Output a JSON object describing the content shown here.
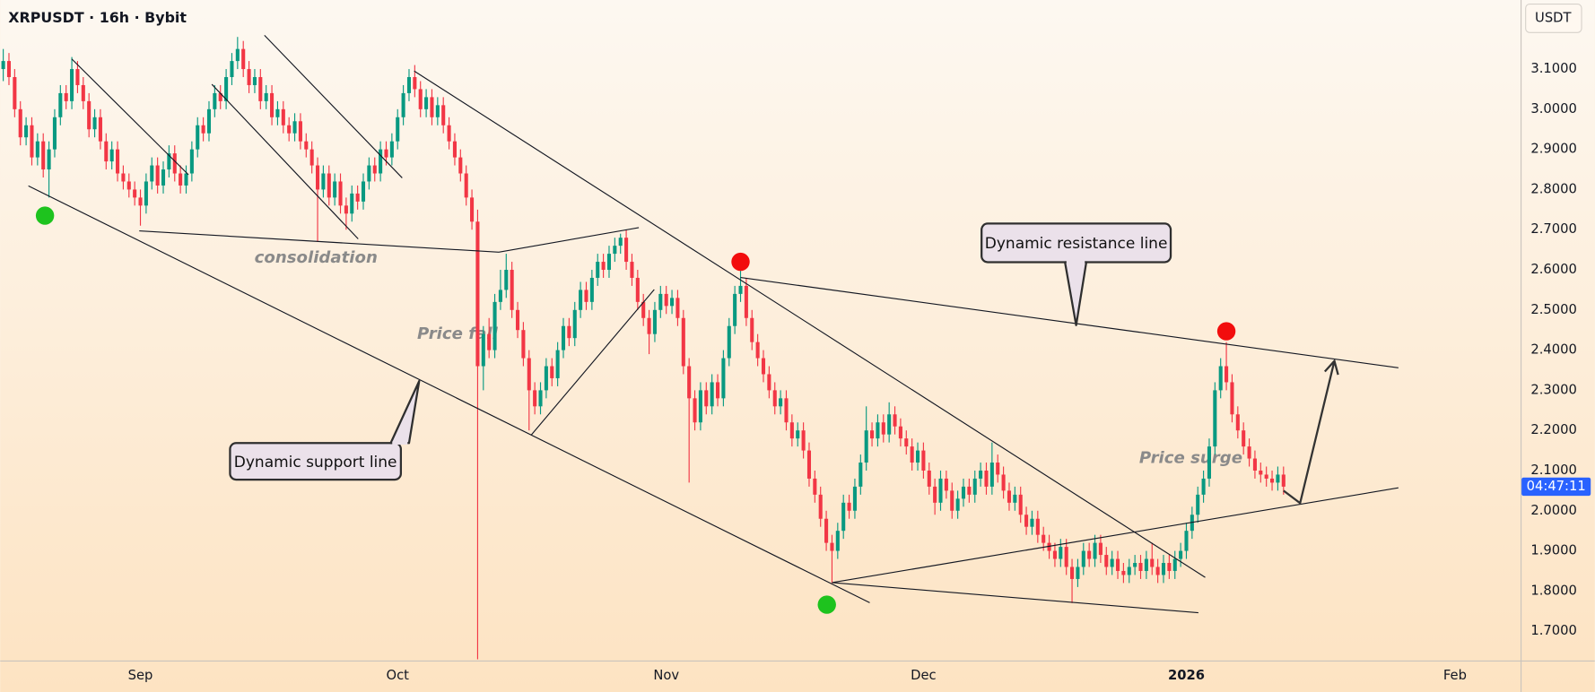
{
  "chart_data": {
    "type": "candlestick",
    "title": "XRPUSDT · 16h · Bybit",
    "currency": "USDT",
    "countdown": "04:47:11",
    "up_color": "#089981",
    "down_color": "#f23645",
    "xlim": [
      -0.53,
      265.47
    ],
    "xticks": [
      {
        "value": 24,
        "label": "Sep"
      },
      {
        "value": 69,
        "label": "Oct"
      },
      {
        "value": 116,
        "label": "Nov"
      },
      {
        "value": 161,
        "label": "Dec"
      },
      {
        "value": 207,
        "label": "2026"
      },
      {
        "value": 254,
        "label": "Feb"
      }
    ],
    "ylim": [
      1.627,
      3.272
    ],
    "yticks": [
      {
        "value": 1.7,
        "label": "1.7000"
      },
      {
        "value": 1.8,
        "label": "1.8000"
      },
      {
        "value": 1.9,
        "label": "1.9000"
      },
      {
        "value": 2.0,
        "label": "2.0000"
      },
      {
        "value": 2.1,
        "label": "2.1000"
      },
      {
        "value": 2.2,
        "label": "2.2000"
      },
      {
        "value": 2.3,
        "label": "2.3000"
      },
      {
        "value": 2.4,
        "label": "2.4000"
      },
      {
        "value": 2.5,
        "label": "2.5000"
      },
      {
        "value": 2.6,
        "label": "2.6000"
      },
      {
        "value": 2.7,
        "label": "2.7000"
      },
      {
        "value": 2.8,
        "label": "2.8000"
      },
      {
        "value": 2.9,
        "label": "2.9000"
      },
      {
        "value": 3.0,
        "label": "3.0000"
      },
      {
        "value": 3.1,
        "label": "3.1000"
      }
    ],
    "candles": [
      [
        3.1,
        3.15,
        3.07,
        3.12
      ],
      [
        3.12,
        3.14,
        3.06,
        3.08
      ],
      [
        3.08,
        3.1,
        2.98,
        3.0
      ],
      [
        3.0,
        3.02,
        2.91,
        2.93
      ],
      [
        2.93,
        2.98,
        2.91,
        2.96
      ],
      [
        2.96,
        2.98,
        2.86,
        2.88
      ],
      [
        2.88,
        2.94,
        2.86,
        2.92
      ],
      [
        2.92,
        2.94,
        2.83,
        2.85
      ],
      [
        2.85,
        2.92,
        2.78,
        2.9
      ],
      [
        2.9,
        3.0,
        2.88,
        2.98
      ],
      [
        2.98,
        3.06,
        2.96,
        3.04
      ],
      [
        3.04,
        3.06,
        3.0,
        3.02
      ],
      [
        3.02,
        3.13,
        3.0,
        3.1
      ],
      [
        3.1,
        3.12,
        3.04,
        3.06
      ],
      [
        3.06,
        3.08,
        3.0,
        3.02
      ],
      [
        3.02,
        3.04,
        2.93,
        2.95
      ],
      [
        2.95,
        3.0,
        2.93,
        2.98
      ],
      [
        2.98,
        3.0,
        2.9,
        2.92
      ],
      [
        2.92,
        2.94,
        2.85,
        2.87
      ],
      [
        2.87,
        2.92,
        2.85,
        2.9
      ],
      [
        2.9,
        2.92,
        2.82,
        2.84
      ],
      [
        2.84,
        2.86,
        2.8,
        2.82
      ],
      [
        2.82,
        2.84,
        2.78,
        2.8
      ],
      [
        2.8,
        2.82,
        2.76,
        2.78
      ],
      [
        2.78,
        2.8,
        2.71,
        2.76
      ],
      [
        2.76,
        2.84,
        2.74,
        2.82
      ],
      [
        2.82,
        2.88,
        2.8,
        2.86
      ],
      [
        2.86,
        2.88,
        2.79,
        2.81
      ],
      [
        2.81,
        2.87,
        2.79,
        2.85
      ],
      [
        2.85,
        2.91,
        2.83,
        2.89
      ],
      [
        2.89,
        2.91,
        2.82,
        2.84
      ],
      [
        2.84,
        2.86,
        2.79,
        2.81
      ],
      [
        2.81,
        2.86,
        2.79,
        2.84
      ],
      [
        2.84,
        2.92,
        2.82,
        2.9
      ],
      [
        2.9,
        2.98,
        2.88,
        2.96
      ],
      [
        2.96,
        2.98,
        2.92,
        2.94
      ],
      [
        2.94,
        3.02,
        2.92,
        3.0
      ],
      [
        3.0,
        3.06,
        2.98,
        3.04
      ],
      [
        3.04,
        3.06,
        3.0,
        3.02
      ],
      [
        3.02,
        3.1,
        3.0,
        3.08
      ],
      [
        3.08,
        3.14,
        3.06,
        3.12
      ],
      [
        3.12,
        3.18,
        3.1,
        3.15
      ],
      [
        3.15,
        3.17,
        3.08,
        3.1
      ],
      [
        3.1,
        3.12,
        3.04,
        3.06
      ],
      [
        3.06,
        3.1,
        3.04,
        3.08
      ],
      [
        3.08,
        3.1,
        3.0,
        3.02
      ],
      [
        3.02,
        3.06,
        3.0,
        3.04
      ],
      [
        3.04,
        3.06,
        2.96,
        2.98
      ],
      [
        2.98,
        3.02,
        2.96,
        3.0
      ],
      [
        3.0,
        3.02,
        2.94,
        2.96
      ],
      [
        2.96,
        2.98,
        2.92,
        2.94
      ],
      [
        2.94,
        2.99,
        2.92,
        2.97
      ],
      [
        2.97,
        2.99,
        2.9,
        2.92
      ],
      [
        2.92,
        2.94,
        2.88,
        2.9
      ],
      [
        2.9,
        2.92,
        2.84,
        2.86
      ],
      [
        2.86,
        2.88,
        2.67,
        2.8
      ],
      [
        2.8,
        2.86,
        2.78,
        2.84
      ],
      [
        2.84,
        2.86,
        2.76,
        2.78
      ],
      [
        2.78,
        2.84,
        2.76,
        2.82
      ],
      [
        2.82,
        2.84,
        2.74,
        2.76
      ],
      [
        2.76,
        2.78,
        2.7,
        2.74
      ],
      [
        2.74,
        2.81,
        2.72,
        2.79
      ],
      [
        2.79,
        2.81,
        2.75,
        2.77
      ],
      [
        2.77,
        2.84,
        2.75,
        2.82
      ],
      [
        2.82,
        2.88,
        2.8,
        2.86
      ],
      [
        2.86,
        2.88,
        2.82,
        2.84
      ],
      [
        2.84,
        2.92,
        2.82,
        2.9
      ],
      [
        2.9,
        2.92,
        2.86,
        2.88
      ],
      [
        2.88,
        2.94,
        2.86,
        2.92
      ],
      [
        2.92,
        3.0,
        2.9,
        2.98
      ],
      [
        2.98,
        3.06,
        2.96,
        3.04
      ],
      [
        3.04,
        3.1,
        3.02,
        3.08
      ],
      [
        3.08,
        3.11,
        3.03,
        3.05
      ],
      [
        3.05,
        3.07,
        2.98,
        3.0
      ],
      [
        3.0,
        3.05,
        2.98,
        3.03
      ],
      [
        3.03,
        3.05,
        2.96,
        2.98
      ],
      [
        2.98,
        3.03,
        2.96,
        3.01
      ],
      [
        3.01,
        3.03,
        2.94,
        2.96
      ],
      [
        2.96,
        2.98,
        2.9,
        2.92
      ],
      [
        2.92,
        2.94,
        2.86,
        2.88
      ],
      [
        2.88,
        2.9,
        2.82,
        2.84
      ],
      [
        2.84,
        2.86,
        2.76,
        2.78
      ],
      [
        2.78,
        2.8,
        2.7,
        2.72
      ],
      [
        2.72,
        2.75,
        1.63,
        2.36
      ],
      [
        2.36,
        2.46,
        2.3,
        2.44
      ],
      [
        2.44,
        2.48,
        2.38,
        2.4
      ],
      [
        2.4,
        2.54,
        2.38,
        2.52
      ],
      [
        2.52,
        2.6,
        2.5,
        2.55
      ],
      [
        2.55,
        2.64,
        2.53,
        2.6
      ],
      [
        2.6,
        2.62,
        2.48,
        2.5
      ],
      [
        2.5,
        2.52,
        2.43,
        2.45
      ],
      [
        2.45,
        2.47,
        2.36,
        2.38
      ],
      [
        2.38,
        2.4,
        2.2,
        2.3
      ],
      [
        2.3,
        2.32,
        2.24,
        2.26
      ],
      [
        2.26,
        2.32,
        2.24,
        2.3
      ],
      [
        2.3,
        2.38,
        2.28,
        2.36
      ],
      [
        2.36,
        2.38,
        2.31,
        2.33
      ],
      [
        2.33,
        2.42,
        2.31,
        2.4
      ],
      [
        2.4,
        2.48,
        2.38,
        2.46
      ],
      [
        2.46,
        2.48,
        2.41,
        2.43
      ],
      [
        2.43,
        2.52,
        2.41,
        2.5
      ],
      [
        2.5,
        2.57,
        2.48,
        2.55
      ],
      [
        2.55,
        2.57,
        2.5,
        2.52
      ],
      [
        2.52,
        2.6,
        2.5,
        2.58
      ],
      [
        2.58,
        2.64,
        2.56,
        2.62
      ],
      [
        2.62,
        2.64,
        2.58,
        2.6
      ],
      [
        2.6,
        2.66,
        2.58,
        2.64
      ],
      [
        2.64,
        2.68,
        2.62,
        2.66
      ],
      [
        2.66,
        2.69,
        2.64,
        2.68
      ],
      [
        2.68,
        2.7,
        2.6,
        2.62
      ],
      [
        2.62,
        2.64,
        2.56,
        2.58
      ],
      [
        2.58,
        2.6,
        2.5,
        2.52
      ],
      [
        2.52,
        2.54,
        2.46,
        2.48
      ],
      [
        2.48,
        2.5,
        2.39,
        2.44
      ],
      [
        2.44,
        2.52,
        2.42,
        2.5
      ],
      [
        2.5,
        2.56,
        2.48,
        2.54
      ],
      [
        2.54,
        2.56,
        2.49,
        2.51
      ],
      [
        2.51,
        2.55,
        2.49,
        2.53
      ],
      [
        2.53,
        2.55,
        2.46,
        2.48
      ],
      [
        2.48,
        2.5,
        2.34,
        2.36
      ],
      [
        2.36,
        2.38,
        2.07,
        2.28
      ],
      [
        2.28,
        2.3,
        2.2,
        2.22
      ],
      [
        2.22,
        2.32,
        2.2,
        2.3
      ],
      [
        2.3,
        2.32,
        2.24,
        2.26
      ],
      [
        2.26,
        2.34,
        2.24,
        2.32
      ],
      [
        2.32,
        2.34,
        2.26,
        2.28
      ],
      [
        2.28,
        2.4,
        2.26,
        2.38
      ],
      [
        2.38,
        2.48,
        2.36,
        2.46
      ],
      [
        2.46,
        2.56,
        2.44,
        2.54
      ],
      [
        2.54,
        2.6,
        2.52,
        2.56
      ],
      [
        2.56,
        2.58,
        2.46,
        2.48
      ],
      [
        2.48,
        2.5,
        2.4,
        2.42
      ],
      [
        2.42,
        2.44,
        2.36,
        2.38
      ],
      [
        2.38,
        2.4,
        2.32,
        2.34
      ],
      [
        2.34,
        2.36,
        2.28,
        2.3
      ],
      [
        2.3,
        2.32,
        2.24,
        2.26
      ],
      [
        2.26,
        2.3,
        2.24,
        2.28
      ],
      [
        2.28,
        2.3,
        2.2,
        2.22
      ],
      [
        2.22,
        2.24,
        2.16,
        2.18
      ],
      [
        2.18,
        2.22,
        2.16,
        2.2
      ],
      [
        2.2,
        2.22,
        2.13,
        2.15
      ],
      [
        2.15,
        2.17,
        2.06,
        2.08
      ],
      [
        2.08,
        2.1,
        2.02,
        2.04
      ],
      [
        2.04,
        2.06,
        1.96,
        1.98
      ],
      [
        1.98,
        2.0,
        1.9,
        1.92
      ],
      [
        1.92,
        1.94,
        1.82,
        1.9
      ],
      [
        1.9,
        1.97,
        1.88,
        1.95
      ],
      [
        1.95,
        2.04,
        1.93,
        2.02
      ],
      [
        2.02,
        2.04,
        1.98,
        2.0
      ],
      [
        2.0,
        2.08,
        1.98,
        2.06
      ],
      [
        2.06,
        2.14,
        2.04,
        2.12
      ],
      [
        2.12,
        2.26,
        2.1,
        2.2
      ],
      [
        2.2,
        2.22,
        2.16,
        2.18
      ],
      [
        2.18,
        2.24,
        2.16,
        2.22
      ],
      [
        2.22,
        2.24,
        2.17,
        2.19
      ],
      [
        2.19,
        2.27,
        2.17,
        2.24
      ],
      [
        2.24,
        2.26,
        2.19,
        2.21
      ],
      [
        2.21,
        2.23,
        2.16,
        2.18
      ],
      [
        2.18,
        2.2,
        2.14,
        2.16
      ],
      [
        2.16,
        2.18,
        2.1,
        2.12
      ],
      [
        2.12,
        2.17,
        2.1,
        2.15
      ],
      [
        2.15,
        2.17,
        2.08,
        2.1
      ],
      [
        2.1,
        2.12,
        2.04,
        2.06
      ],
      [
        2.06,
        2.08,
        1.99,
        2.02
      ],
      [
        2.02,
        2.1,
        2.0,
        2.08
      ],
      [
        2.08,
        2.1,
        2.03,
        2.05
      ],
      [
        2.05,
        2.07,
        1.98,
        2.0
      ],
      [
        2.0,
        2.05,
        1.98,
        2.03
      ],
      [
        2.03,
        2.08,
        2.01,
        2.06
      ],
      [
        2.06,
        2.08,
        2.02,
        2.04
      ],
      [
        2.04,
        2.1,
        2.02,
        2.08
      ],
      [
        2.08,
        2.12,
        2.06,
        2.1
      ],
      [
        2.1,
        2.12,
        2.04,
        2.06
      ],
      [
        2.06,
        2.17,
        2.04,
        2.12
      ],
      [
        2.12,
        2.14,
        2.07,
        2.09
      ],
      [
        2.09,
        2.11,
        2.03,
        2.05
      ],
      [
        2.05,
        2.07,
        2.0,
        2.02
      ],
      [
        2.02,
        2.06,
        2.0,
        2.04
      ],
      [
        2.04,
        2.06,
        1.97,
        1.99
      ],
      [
        1.99,
        2.01,
        1.94,
        1.96
      ],
      [
        1.96,
        2.0,
        1.94,
        1.98
      ],
      [
        1.98,
        2.0,
        1.92,
        1.94
      ],
      [
        1.94,
        1.96,
        1.9,
        1.92
      ],
      [
        1.92,
        1.94,
        1.88,
        1.9
      ],
      [
        1.9,
        1.92,
        1.86,
        1.88
      ],
      [
        1.88,
        1.93,
        1.86,
        1.91
      ],
      [
        1.91,
        1.93,
        1.84,
        1.86
      ],
      [
        1.86,
        1.88,
        1.77,
        1.83
      ],
      [
        1.83,
        1.88,
        1.81,
        1.86
      ],
      [
        1.86,
        1.92,
        1.84,
        1.9
      ],
      [
        1.9,
        1.92,
        1.86,
        1.88
      ],
      [
        1.88,
        1.94,
        1.86,
        1.92
      ],
      [
        1.92,
        1.94,
        1.87,
        1.89
      ],
      [
        1.89,
        1.91,
        1.84,
        1.86
      ],
      [
        1.86,
        1.9,
        1.84,
        1.88
      ],
      [
        1.88,
        1.9,
        1.83,
        1.85
      ],
      [
        1.85,
        1.87,
        1.82,
        1.84
      ],
      [
        1.84,
        1.88,
        1.82,
        1.86
      ],
      [
        1.86,
        1.89,
        1.84,
        1.87
      ],
      [
        1.87,
        1.89,
        1.83,
        1.85
      ],
      [
        1.85,
        1.9,
        1.83,
        1.88
      ],
      [
        1.88,
        1.92,
        1.84,
        1.86
      ],
      [
        1.86,
        1.88,
        1.82,
        1.84
      ],
      [
        1.84,
        1.89,
        1.82,
        1.87
      ],
      [
        1.87,
        1.89,
        1.83,
        1.85
      ],
      [
        1.85,
        1.9,
        1.83,
        1.88
      ],
      [
        1.88,
        1.92,
        1.86,
        1.9
      ],
      [
        1.9,
        1.97,
        1.88,
        1.95
      ],
      [
        1.95,
        2.01,
        1.93,
        1.99
      ],
      [
        1.99,
        2.06,
        1.97,
        2.04
      ],
      [
        2.04,
        2.1,
        2.02,
        2.08
      ],
      [
        2.08,
        2.18,
        2.06,
        2.16
      ],
      [
        2.16,
        2.32,
        2.14,
        2.3
      ],
      [
        2.3,
        2.38,
        2.28,
        2.36
      ],
      [
        2.36,
        2.42,
        2.3,
        2.32
      ],
      [
        2.32,
        2.34,
        2.22,
        2.24
      ],
      [
        2.24,
        2.26,
        2.18,
        2.2
      ],
      [
        2.2,
        2.22,
        2.14,
        2.16
      ],
      [
        2.16,
        2.18,
        2.11,
        2.13
      ],
      [
        2.13,
        2.15,
        2.08,
        2.1
      ],
      [
        2.1,
        2.12,
        2.07,
        2.09
      ],
      [
        2.09,
        2.11,
        2.06,
        2.08
      ],
      [
        2.08,
        2.1,
        2.05,
        2.07
      ],
      [
        2.07,
        2.11,
        2.05,
        2.09
      ],
      [
        2.09,
        2.11,
        2.04,
        2.06
      ]
    ],
    "lines": [
      {
        "x": [
          12,
          32.4
        ],
        "y": [
          3.125,
          2.837
        ]
      },
      {
        "x": [
          4.4,
          151.6
        ],
        "y": [
          2.809,
          1.771
        ]
      },
      {
        "x": [
          23.8,
          86.7
        ],
        "y": [
          2.697,
          2.644
        ]
      },
      {
        "x": [
          86.7,
          111.2
        ],
        "y": [
          2.644,
          2.705
        ]
      },
      {
        "x": [
          71.9,
          210.3
        ],
        "y": [
          3.095,
          1.834
        ]
      },
      {
        "x": [
          45.7,
          69.8
        ],
        "y": [
          3.184,
          2.829
        ]
      },
      {
        "x": [
          36.5,
          62.1
        ],
        "y": [
          3.062,
          2.677
        ]
      },
      {
        "x": [
          92.4,
          113.9
        ],
        "y": [
          2.189,
          2.551
        ]
      },
      {
        "x": [
          129,
          244.1
        ],
        "y": [
          2.581,
          2.356
        ]
      },
      {
        "x": [
          145,
          244.1
        ],
        "y": [
          1.821,
          2.057
        ]
      },
      {
        "x": [
          145,
          209.1
        ],
        "y": [
          1.821,
          1.746
        ]
      }
    ],
    "arrow": {
      "x": [
        224,
        226.9,
        232.9
      ],
      "y": [
        2.05,
        2.019,
        2.373
      ],
      "color": "#333333"
    },
    "markers": [
      {
        "x": 7.3,
        "y": 2.735,
        "color": "#1ec31e"
      },
      {
        "x": 129,
        "y": 2.62,
        "color": "#f20d0d"
      },
      {
        "x": 144.1,
        "y": 1.766,
        "color": "#1ec31e"
      },
      {
        "x": 214,
        "y": 2.447,
        "color": "#f20d0d"
      }
    ],
    "annotations": [
      "consolidation",
      "Price fall",
      "Price surge"
    ],
    "callouts": [
      "Dynamic support line",
      "Dynamic resistance line"
    ]
  }
}
